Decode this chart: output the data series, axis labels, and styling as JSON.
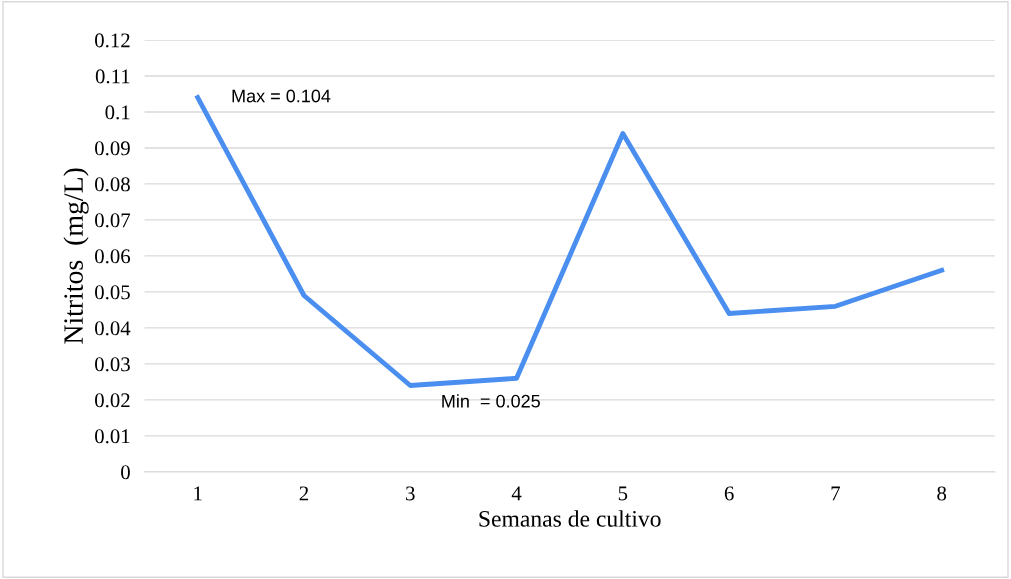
{
  "chart_data": {
    "type": "line",
    "xlabel": "Semanas de cultivo",
    "ylabel": "Nitritos  (mg/L)",
    "categories": [
      "1",
      "2",
      "3",
      "4",
      "5",
      "6",
      "7",
      "8"
    ],
    "series": [
      {
        "color": "#4a8ef0",
        "values": [
          0.104,
          0.049,
          0.024,
          0.026,
          0.094,
          0.044,
          0.046,
          0.056
        ]
      }
    ],
    "ylim": [
      0,
      0.12
    ],
    "yticks": [
      0,
      0.01,
      0.02,
      0.03,
      0.04,
      0.05,
      0.06,
      0.07,
      0.08,
      0.09,
      0.1,
      0.11,
      0.12
    ],
    "grid": "y",
    "marker": "none",
    "line_style": "solid",
    "annotations": [
      {
        "text": "Max = 0.104",
        "x": "1",
        "y": 0.104
      },
      {
        "text": "Min  = 0.025",
        "x": "3",
        "y": 0.025
      }
    ]
  }
}
